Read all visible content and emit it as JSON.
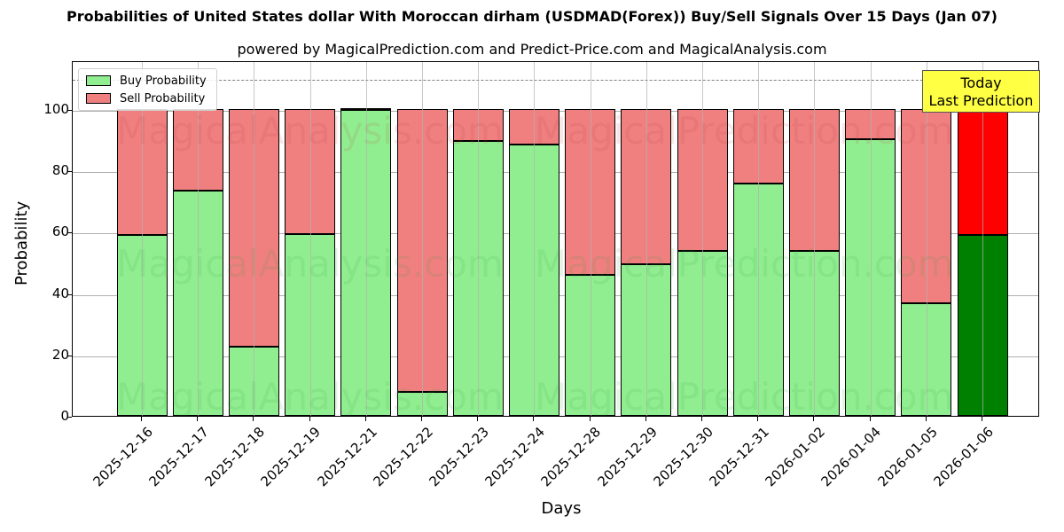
{
  "header": {
    "title": "Probabilities of United States dollar With Moroccan dirham (USDMAD(Forex)) Buy/Sell Signals Over 15 Days (Jan 07)",
    "subtitle": "powered by MagicalPrediction.com and Predict-Price.com and MagicalAnalysis.com"
  },
  "legend": {
    "buy_label": "Buy Probability",
    "sell_label": "Sell Probability"
  },
  "annotation": {
    "line1": "Today",
    "line2": "Last Prediction"
  },
  "watermarks": [
    "MagicalAnalysis.com",
    "MagicalPrediction.com"
  ],
  "colors": {
    "buy": "#90ee90",
    "sell": "#f08080",
    "today_buy": "#008000",
    "today_sell": "#ff0000",
    "annotation_bg": "#ffff44"
  },
  "chart_data": {
    "type": "bar",
    "stacked": true,
    "title": "Probabilities of United States dollar With Moroccan dirham (USDMAD(Forex)) Buy/Sell Signals Over 15 Days (Jan 07)",
    "subtitle": "powered by MagicalPrediction.com and Predict-Price.com and MagicalAnalysis.com",
    "xlabel": "Days",
    "ylabel": "Probability",
    "ylim": [
      0,
      115
    ],
    "yticks": [
      0,
      20,
      40,
      60,
      80,
      100
    ],
    "grid": true,
    "legend_position": "upper left",
    "reference_line": {
      "y": 110,
      "style": "dashed",
      "color": "#808080"
    },
    "categories": [
      "2025-12-16",
      "2025-12-17",
      "2025-12-18",
      "2025-12-19",
      "2025-12-21",
      "2025-12-22",
      "2025-12-23",
      "2025-12-24",
      "2025-12-28",
      "2025-12-29",
      "2025-12-30",
      "2025-12-31",
      "2026-01-02",
      "2026-01-04",
      "2026-01-05",
      "2026-01-06"
    ],
    "series": [
      {
        "name": "Buy Probability",
        "values": [
          59.0,
          73.4,
          22.5,
          59.2,
          99.7,
          7.8,
          89.6,
          88.4,
          46.0,
          49.4,
          53.8,
          75.7,
          53.8,
          90.2,
          36.7,
          59.0
        ]
      },
      {
        "name": "Sell Probability",
        "values": [
          41.0,
          26.6,
          77.5,
          40.8,
          0.3,
          92.2,
          10.4,
          11.6,
          54.0,
          50.6,
          46.2,
          24.3,
          46.2,
          9.8,
          63.3,
          41.0
        ]
      }
    ],
    "annotations": [
      {
        "text": "Today\nLast Prediction",
        "category": "2026-01-06"
      }
    ]
  }
}
